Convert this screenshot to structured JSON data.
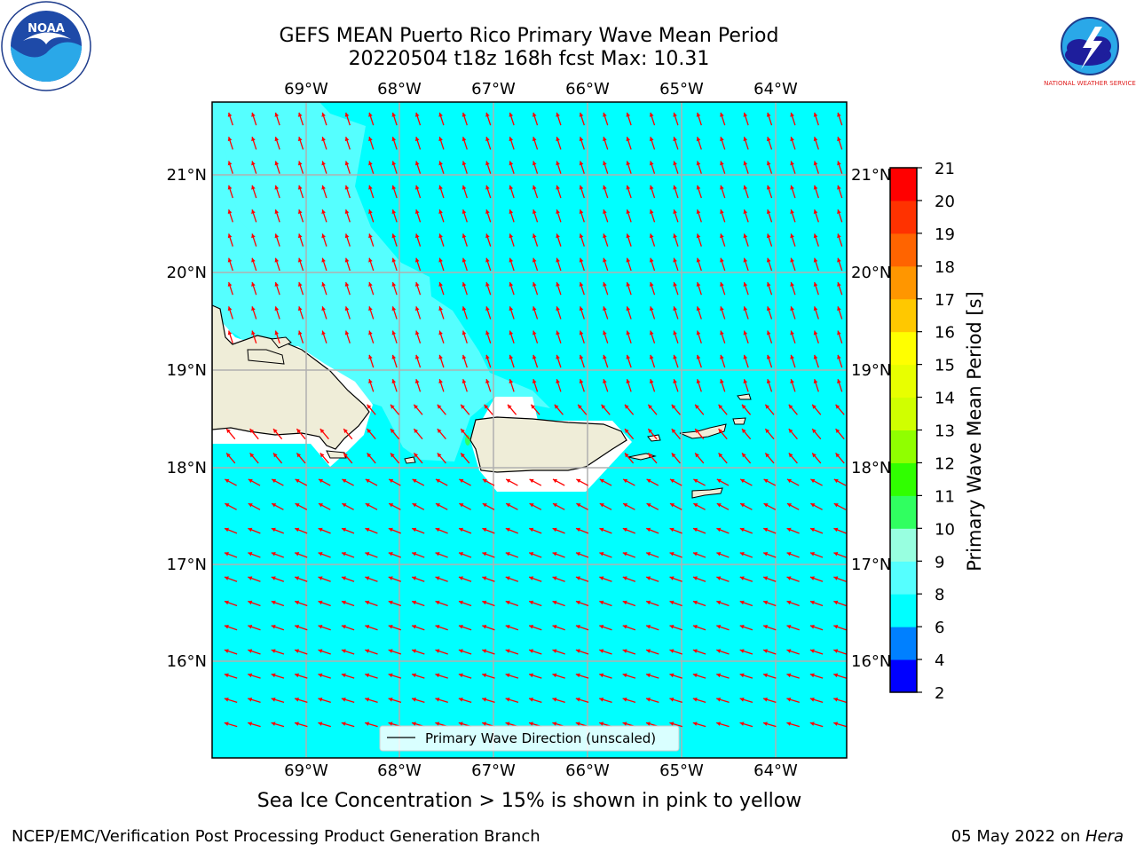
{
  "title": {
    "line1": "GEFS MEAN Puerto Rico Primary Wave Mean Period",
    "line2": "20220504 t18z 168h fcst   Max: 10.31"
  },
  "map": {
    "lon_labels": [
      "69°W",
      "68°W",
      "67°W",
      "66°W",
      "65°W",
      "64°W"
    ],
    "lat_labels": [
      "21°N",
      "20°N",
      "19°N",
      "18°N",
      "17°N",
      "16°N"
    ],
    "legend_label": "Primary Wave Direction (unscaled)",
    "colors": {
      "ocean": "#00ffff",
      "ocean_light": "#55ffff",
      "land": "#efedd8",
      "arrow": "#ff0000",
      "grid": "#b0b0b0"
    }
  },
  "colorbar": {
    "label": "Primary Wave Mean Period [s]",
    "ticks": [
      "2",
      "4",
      "6",
      "8",
      "9",
      "10",
      "11",
      "12",
      "13",
      "14",
      "15",
      "16",
      "17",
      "18",
      "19",
      "20",
      "21"
    ],
    "colors": [
      "#0000ff",
      "#0080ff",
      "#00ffff",
      "#55ffff",
      "#98ffe0",
      "#30ff60",
      "#30ff00",
      "#90ff00",
      "#d0ff00",
      "#e8ff00",
      "#ffff00",
      "#ffc800",
      "#ff9600",
      "#ff6400",
      "#ff3200",
      "#ff0000"
    ]
  },
  "footer": {
    "note": "Sea Ice Concentration > 15% is shown in pink to yellow",
    "credit_left": "NCEP/EMC/Verification Post Processing Product Generation Branch",
    "credit_right_date": "05 May 2022 on ",
    "credit_right_host": "Hera"
  },
  "logos": {
    "noaa_text": "NOAA",
    "nws_text": "NATIONAL WEATHER SERVICE"
  }
}
